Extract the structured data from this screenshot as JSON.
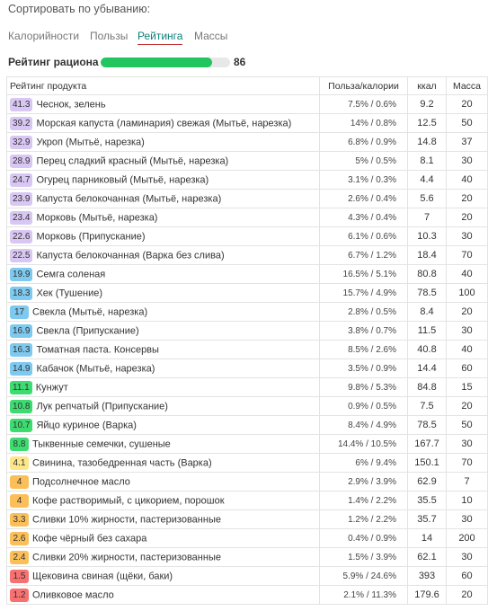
{
  "sort": {
    "caption": "Сортировать по убыванию:",
    "tabs": [
      {
        "label": "Калорийности",
        "active": false
      },
      {
        "label": "Пользы",
        "active": false
      },
      {
        "label": "Рейтинга",
        "active": true
      },
      {
        "label": "Массы",
        "active": false
      }
    ]
  },
  "rating": {
    "label": "Рейтинг рациона",
    "value": "86",
    "fill_percent": 86,
    "fill_color": "#22c55e"
  },
  "table": {
    "headers": {
      "product": "Рейтинг продукта",
      "ratio": "Польза/калории",
      "kcal": "ккал",
      "mass": "Масса"
    },
    "rows": [
      {
        "score": "41.3",
        "color": "purple",
        "name": "Чеснок, зелень",
        "ratio": "7.5% / 0.6%",
        "kcal": "9.2",
        "mass": "20"
      },
      {
        "score": "39.2",
        "color": "purple",
        "name": "Морская капуста (ламинария) свежая (Мытьё, нарезка)",
        "ratio": "14% / 0.8%",
        "kcal": "12.5",
        "mass": "50"
      },
      {
        "score": "32.9",
        "color": "purple",
        "name": "Укроп (Мытьё, нарезка)",
        "ratio": "6.8% / 0.9%",
        "kcal": "14.8",
        "mass": "37"
      },
      {
        "score": "28.9",
        "color": "purple",
        "name": "Перец сладкий красный (Мытьё, нарезка)",
        "ratio": "5% / 0.5%",
        "kcal": "8.1",
        "mass": "30"
      },
      {
        "score": "24.7",
        "color": "purple",
        "name": "Огурец парниковый (Мытьё, нарезка)",
        "ratio": "3.1% / 0.3%",
        "kcal": "4.4",
        "mass": "40"
      },
      {
        "score": "23.9",
        "color": "purple",
        "name": "Капуста белокочанная (Мытьё, нарезка)",
        "ratio": "2.6% / 0.4%",
        "kcal": "5.6",
        "mass": "20"
      },
      {
        "score": "23.4",
        "color": "purple",
        "name": "Морковь (Мытьё, нарезка)",
        "ratio": "4.3% / 0.4%",
        "kcal": "7",
        "mass": "20"
      },
      {
        "score": "22.6",
        "color": "purple",
        "name": "Морковь (Припускание)",
        "ratio": "6.1% / 0.6%",
        "kcal": "10.3",
        "mass": "30"
      },
      {
        "score": "22.5",
        "color": "purple",
        "name": "Капуста белокочанная (Варка без слива)",
        "ratio": "6.7% / 1.2%",
        "kcal": "18.4",
        "mass": "70"
      },
      {
        "score": "19.9",
        "color": "blue",
        "name": "Семга соленая",
        "ratio": "16.5% / 5.1%",
        "kcal": "80.8",
        "mass": "40"
      },
      {
        "score": "18.3",
        "color": "blue",
        "name": "Хек (Тушение)",
        "ratio": "15.7% / 4.9%",
        "kcal": "78.5",
        "mass": "100"
      },
      {
        "score": "17",
        "color": "blue",
        "name": "Свекла (Мытьё, нарезка)",
        "ratio": "2.8% / 0.5%",
        "kcal": "8.4",
        "mass": "20"
      },
      {
        "score": "16.9",
        "color": "blue",
        "name": "Свекла (Припускание)",
        "ratio": "3.8% / 0.7%",
        "kcal": "11.5",
        "mass": "30"
      },
      {
        "score": "16.3",
        "color": "blue",
        "name": "Томатная паста. Консервы",
        "ratio": "8.5% / 2.6%",
        "kcal": "40.8",
        "mass": "40"
      },
      {
        "score": "14.9",
        "color": "blue",
        "name": "Кабачок (Мытьё, нарезка)",
        "ratio": "3.5% / 0.9%",
        "kcal": "14.4",
        "mass": "60"
      },
      {
        "score": "11.1",
        "color": "green",
        "name": "Кунжут",
        "ratio": "9.8% / 5.3%",
        "kcal": "84.8",
        "mass": "15"
      },
      {
        "score": "10.8",
        "color": "green",
        "name": "Лук репчатый (Припускание)",
        "ratio": "0.9% / 0.5%",
        "kcal": "7.5",
        "mass": "20"
      },
      {
        "score": "10.7",
        "color": "green",
        "name": "Яйцо куриное (Варка)",
        "ratio": "8.4% / 4.9%",
        "kcal": "78.5",
        "mass": "50"
      },
      {
        "score": "8.8",
        "color": "green",
        "name": "Тыквенные семечки, сушеные",
        "ratio": "14.4% / 10.5%",
        "kcal": "167.7",
        "mass": "30"
      },
      {
        "score": "4.1",
        "color": "yellow",
        "name": "Свинина, тазобедренная часть (Варка)",
        "ratio": "6% / 9.4%",
        "kcal": "150.1",
        "mass": "70"
      },
      {
        "score": "4",
        "color": "orange",
        "name": "Подсолнечное масло",
        "ratio": "2.9% / 3.9%",
        "kcal": "62.9",
        "mass": "7"
      },
      {
        "score": "4",
        "color": "orange",
        "name": "Кофе растворимый, с цикорием, порошок",
        "ratio": "1.4% / 2.2%",
        "kcal": "35.5",
        "mass": "10"
      },
      {
        "score": "3.3",
        "color": "orange",
        "name": "Сливки 10% жирности, пастеризованные",
        "ratio": "1.2% / 2.2%",
        "kcal": "35.7",
        "mass": "30"
      },
      {
        "score": "2.6",
        "color": "orange",
        "name": "Кофе чёрный без сахара",
        "ratio": "0.4% / 0.9%",
        "kcal": "14",
        "mass": "200"
      },
      {
        "score": "2.4",
        "color": "orange",
        "name": "Сливки 20% жирности, пастеризованные",
        "ratio": "1.5% / 3.9%",
        "kcal": "62.1",
        "mass": "30"
      },
      {
        "score": "1.5",
        "color": "red",
        "name": "Щековина свиная (щёки, баки)",
        "ratio": "5.9% / 24.6%",
        "kcal": "393",
        "mass": "60"
      },
      {
        "score": "1.2",
        "color": "red",
        "name": "Оливковое масло",
        "ratio": "2.1% / 11.3%",
        "kcal": "179.6",
        "mass": "20"
      }
    ]
  }
}
